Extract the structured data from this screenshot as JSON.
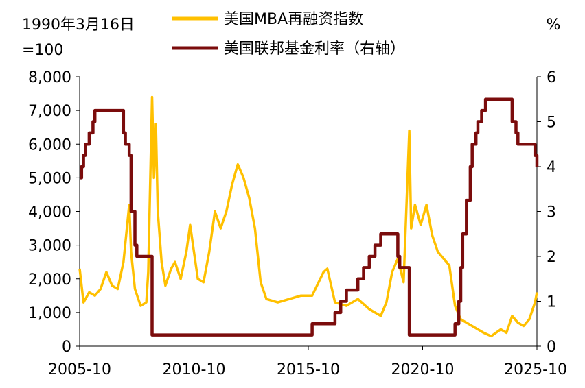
{
  "chart_data": {
    "type": "line",
    "left_axis_note": [
      "1990年3月16日",
      "=100"
    ],
    "right_axis_unit": "%",
    "left_axis": {
      "min": 0,
      "max": 8000,
      "ticks": [
        "0",
        "1,000",
        "2,000",
        "3,000",
        "4,000",
        "5,000",
        "6,000",
        "7,000",
        "8,000"
      ]
    },
    "right_axis": {
      "min": 0,
      "max": 6,
      "ticks": [
        "0",
        "1",
        "2",
        "3",
        "4",
        "5",
        "6"
      ]
    },
    "x_axis": {
      "range": [
        "2005-10",
        "2025-10"
      ],
      "ticks": [
        "2005-10",
        "2010-10",
        "2015-10",
        "2020-10",
        "2025-10"
      ]
    },
    "grid": false,
    "legend_position": "top",
    "series": [
      {
        "name": "美国MBA再融资指数",
        "axis": "left",
        "color": "#FFC000",
        "x": [
          "2005-10",
          "2005-12",
          "2006-03",
          "2006-06",
          "2006-09",
          "2006-12",
          "2007-03",
          "2007-06",
          "2007-09",
          "2007-12",
          "2008-01",
          "2008-03",
          "2008-06",
          "2008-09",
          "2008-10",
          "2008-12",
          "2009-01",
          "2009-02",
          "2009-03",
          "2009-05",
          "2009-07",
          "2009-10",
          "2009-12",
          "2010-03",
          "2010-06",
          "2010-08",
          "2010-10",
          "2010-12",
          "2011-03",
          "2011-06",
          "2011-09",
          "2011-12",
          "2012-03",
          "2012-06",
          "2012-09",
          "2012-12",
          "2013-03",
          "2013-06",
          "2013-09",
          "2013-12",
          "2014-06",
          "2014-12",
          "2015-06",
          "2015-12",
          "2016-06",
          "2016-08",
          "2016-12",
          "2017-06",
          "2017-12",
          "2018-06",
          "2018-12",
          "2019-03",
          "2019-06",
          "2019-09",
          "2019-12",
          "2020-03",
          "2020-04",
          "2020-06",
          "2020-09",
          "2020-12",
          "2021-03",
          "2021-06",
          "2021-09",
          "2021-12",
          "2022-03",
          "2022-06",
          "2022-12",
          "2023-06",
          "2023-10",
          "2024-03",
          "2024-06",
          "2024-09",
          "2024-12",
          "2025-03",
          "2025-06",
          "2025-09",
          "2025-10"
        ],
        "values": [
          2300,
          1300,
          1600,
          1500,
          1700,
          2200,
          1800,
          1700,
          2500,
          4200,
          2800,
          1700,
          1200,
          1300,
          2200,
          7400,
          5000,
          6600,
          4000,
          2500,
          1800,
          2300,
          2500,
          2000,
          2800,
          3600,
          2800,
          2000,
          1900,
          2800,
          4000,
          3500,
          4000,
          4800,
          5400,
          5000,
          4400,
          3500,
          1900,
          1400,
          1300,
          1400,
          1500,
          1500,
          2200,
          2300,
          1300,
          1200,
          1400,
          1100,
          900,
          1300,
          2200,
          2600,
          1900,
          6400,
          3500,
          4200,
          3600,
          4200,
          3300,
          2800,
          2600,
          2400,
          1200,
          800,
          600,
          400,
          300,
          500,
          400,
          900,
          700,
          600,
          800,
          1300,
          1600
        ]
      },
      {
        "name": "美国联邦基金利率（右轴）",
        "axis": "right",
        "color": "#7B0C0C",
        "x": [
          "2005-10",
          "2005-11",
          "2005-12",
          "2006-01",
          "2006-03",
          "2006-05",
          "2006-06",
          "2006-07",
          "2007-08",
          "2007-09",
          "2007-10",
          "2007-12",
          "2008-01",
          "2008-03",
          "2008-04",
          "2008-10",
          "2008-12",
          "2015-11",
          "2015-12",
          "2016-12",
          "2017-03",
          "2017-06",
          "2017-12",
          "2018-03",
          "2018-06",
          "2018-09",
          "2018-12",
          "2019-07",
          "2019-09",
          "2019-10",
          "2020-02",
          "2020-03",
          "2022-02",
          "2022-03",
          "2022-05",
          "2022-06",
          "2022-07",
          "2022-09",
          "2022-11",
          "2022-12",
          "2023-02",
          "2023-03",
          "2023-05",
          "2023-07",
          "2024-08",
          "2024-09",
          "2024-11",
          "2024-12",
          "2025-08",
          "2025-09",
          "2025-10"
        ],
        "values": [
          3.75,
          4.0,
          4.25,
          4.5,
          4.75,
          5.0,
          5.25,
          5.25,
          5.25,
          4.75,
          4.5,
          4.25,
          3.0,
          2.25,
          2.0,
          2.0,
          0.25,
          0.25,
          0.5,
          0.75,
          1.0,
          1.25,
          1.5,
          1.75,
          2.0,
          2.25,
          2.5,
          2.5,
          2.0,
          1.75,
          1.75,
          0.25,
          0.25,
          0.5,
          1.0,
          1.75,
          2.5,
          3.25,
          4.0,
          4.5,
          4.75,
          5.0,
          5.25,
          5.5,
          5.5,
          5.0,
          4.75,
          4.5,
          4.5,
          4.25,
          4.0
        ]
      }
    ]
  }
}
